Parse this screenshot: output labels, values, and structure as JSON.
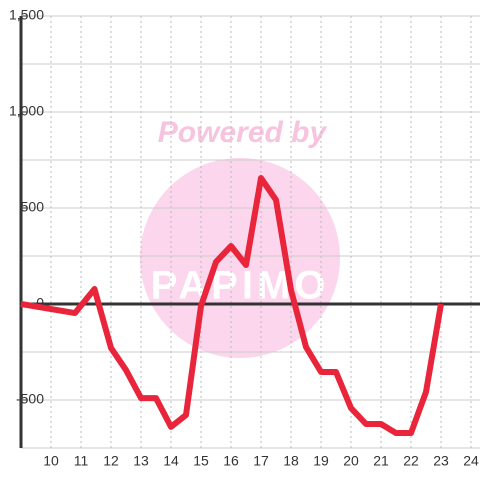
{
  "chart_data": {
    "type": "line",
    "watermark": {
      "line1": "Powered by",
      "line2": "PAPIMO"
    },
    "x": [
      9,
      10.8,
      11.45,
      12,
      12.5,
      13,
      13.5,
      14,
      14.5,
      15,
      15.5,
      16,
      16.5,
      17,
      17.5,
      18,
      18.5,
      19,
      19.5,
      20,
      20.5,
      21,
      21.5,
      22,
      22.5,
      23
    ],
    "series": [
      {
        "color": "#e8253a",
        "values": [
          0,
          -47,
          78,
          -229,
          -344,
          -490,
          -490,
          -640,
          -578,
          -10,
          219,
          302,
          203,
          656,
          542,
          73,
          -224,
          -354,
          -354,
          -542,
          -625,
          -625,
          -672,
          -672,
          -458,
          0
        ]
      }
    ],
    "xlim": [
      9,
      24.3
    ],
    "xticks": [
      10,
      11,
      12,
      13,
      14,
      15,
      16,
      17,
      18,
      19,
      20,
      21,
      22,
      23,
      24
    ],
    "ylim": [
      -750,
      1500
    ],
    "yticks": [
      -500,
      0,
      500,
      {
        "value": 1000,
        "label": "1,000"
      },
      {
        "value": 1500,
        "label": "1,500"
      }
    ],
    "y_minor_ticks": [
      -750,
      -250,
      250,
      750,
      1250
    ],
    "grid": true
  }
}
